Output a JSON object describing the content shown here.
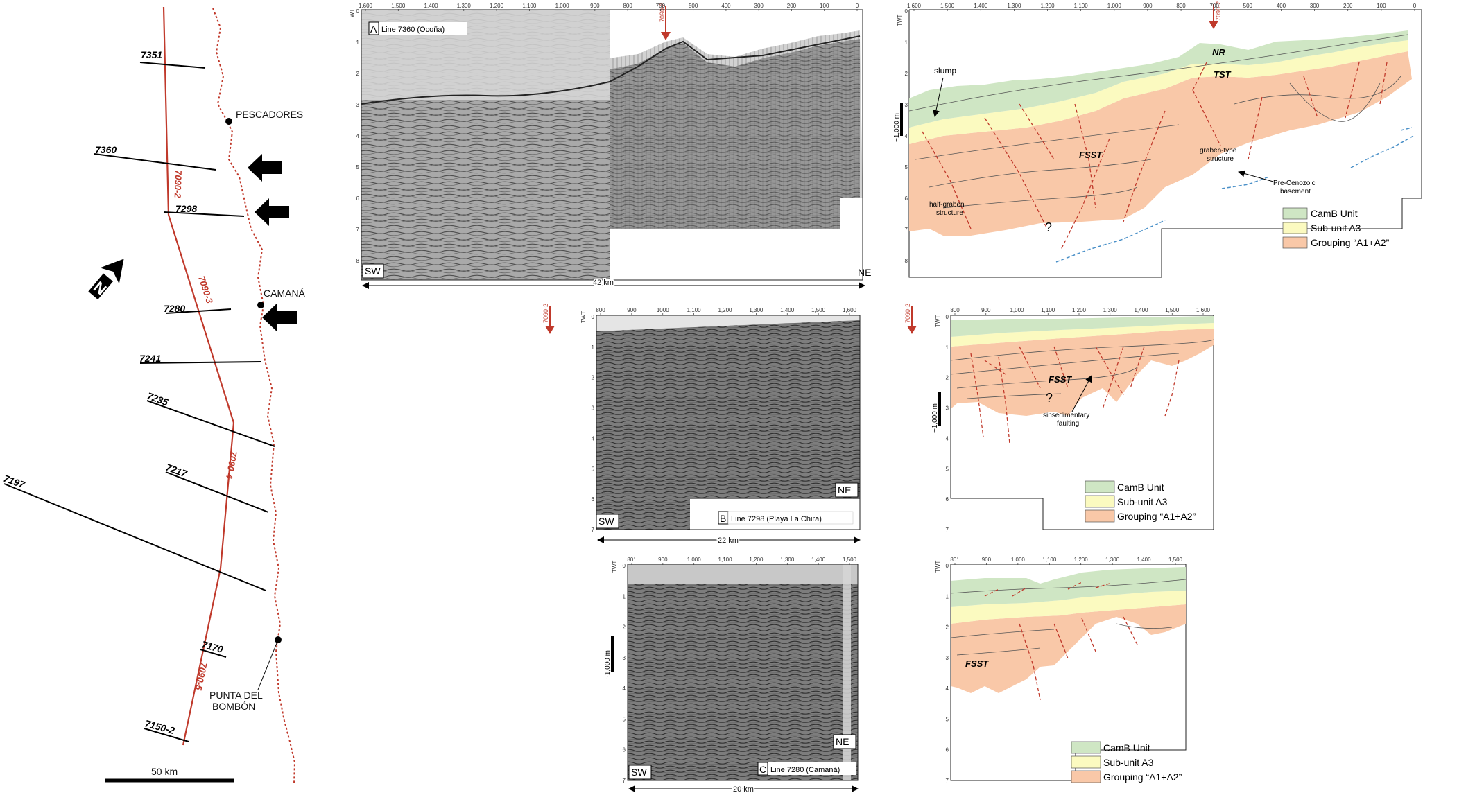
{
  "map": {
    "north_label": "N",
    "scale_label": "50 km",
    "line_labels": [
      "7351",
      "7360",
      "7298",
      "7280",
      "7241",
      "7235",
      "7217",
      "7197",
      "7170",
      "7150-2"
    ],
    "segment_labels": [
      "7090-2",
      "7090-3",
      "7090-4",
      "7090-5"
    ],
    "places": {
      "pescadores": "PESCADORES",
      "camana": "CAMANÁ",
      "punta_line1": "PUNTA DEL",
      "punta_line2": "BOMBÓN"
    }
  },
  "panel_a": {
    "tag": "A",
    "title": "Line 7360 (Ocoña)",
    "axis_label": "TWT",
    "cdp_ticks": [
      "1,600",
      "1,500",
      "1,400",
      "1,300",
      "1,200",
      "1,100",
      "1,000",
      "900",
      "800",
      "700",
      "500",
      "400",
      "300",
      "200",
      "100",
      "0"
    ],
    "twt_ticks": [
      "0",
      "1",
      "2",
      "3",
      "4",
      "5",
      "6",
      "7",
      "8"
    ],
    "tie_label": "7090-2",
    "sw": "SW",
    "ne": "NE",
    "distance": "42 km"
  },
  "interp_a": {
    "axis_label": "TWT",
    "cdp_ticks": [
      "1,600",
      "1,500",
      "1,400",
      "1,300",
      "1,200",
      "1,100",
      "1,000",
      "900",
      "800",
      "700",
      "500",
      "400",
      "300",
      "200",
      "100",
      "0"
    ],
    "twt_ticks": [
      "0",
      "1",
      "2",
      "3",
      "4",
      "5",
      "6",
      "7",
      "8"
    ],
    "tie_label": "7090-2",
    "scale_bar": "~1,000 m",
    "slump": "slump",
    "nr": "NR",
    "tst": "TST",
    "fsst": "FSST",
    "graben_l1": "graben-type",
    "graben_l2": "structure",
    "precen_l1": "Pre-Cenozoic",
    "precen_l2": "basement",
    "halfgraben_l1": "half-graben",
    "halfgraben_l2": "structure",
    "question": "?"
  },
  "panel_b": {
    "tag": "B",
    "title": "Line 7298 (Playa La Chira)",
    "axis_label": "TWT",
    "cdp_ticks": [
      "800",
      "900",
      "1000",
      "1,100",
      "1,200",
      "1,300",
      "1,400",
      "1,500",
      "1,600"
    ],
    "twt_ticks": [
      "0",
      "1",
      "2",
      "3",
      "4",
      "5",
      "6",
      "7"
    ],
    "tie_label": "7090-2",
    "sw": "SW",
    "ne": "NE",
    "distance": "22 km"
  },
  "interp_b": {
    "axis_label": "TWT",
    "cdp_ticks": [
      "800",
      "900",
      "1,000",
      "1,100",
      "1,200",
      "1,300",
      "1,400",
      "1,500",
      "1,600"
    ],
    "twt_ticks": [
      "0",
      "1",
      "2",
      "3",
      "4",
      "5",
      "6",
      "7"
    ],
    "tie_label": "7090-2",
    "scale_bar": "~1,000 m",
    "fsst": "FSST",
    "question": "?",
    "sinsed_l1": "sinsedimentary",
    "sinsed_l2": "faulting"
  },
  "panel_c": {
    "tag": "C",
    "title": "Line 7280 (Camaná)",
    "axis_label": "TWT",
    "cdp_ticks": [
      "801",
      "900",
      "1,000",
      "1,100",
      "1,200",
      "1,300",
      "1,400",
      "1,500"
    ],
    "twt_ticks": [
      "0",
      "1",
      "2",
      "3",
      "4",
      "5",
      "6",
      "7"
    ],
    "scale_bar": "~1,000 m",
    "sw": "SW",
    "ne": "NE",
    "distance": "20 km"
  },
  "interp_c": {
    "axis_label": "TWT",
    "cdp_ticks": [
      "801",
      "900",
      "1,000",
      "1,100",
      "1,200",
      "1,300",
      "1,400",
      "1,500"
    ],
    "twt_ticks": [
      "0",
      "1",
      "2",
      "3",
      "4",
      "5",
      "6",
      "7"
    ],
    "fsst": "FSST"
  },
  "legend": {
    "camb": "CamB Unit",
    "a3": "Sub-unit A3",
    "a1a2": "Grouping “A1+A2”"
  },
  "colors": {
    "camb": "#cfe6c4",
    "a3": "#fbfac0",
    "a1a2": "#f9c8a8",
    "fault": "#c0392b",
    "basement": "#4a90c8",
    "track": "#c0392b"
  }
}
